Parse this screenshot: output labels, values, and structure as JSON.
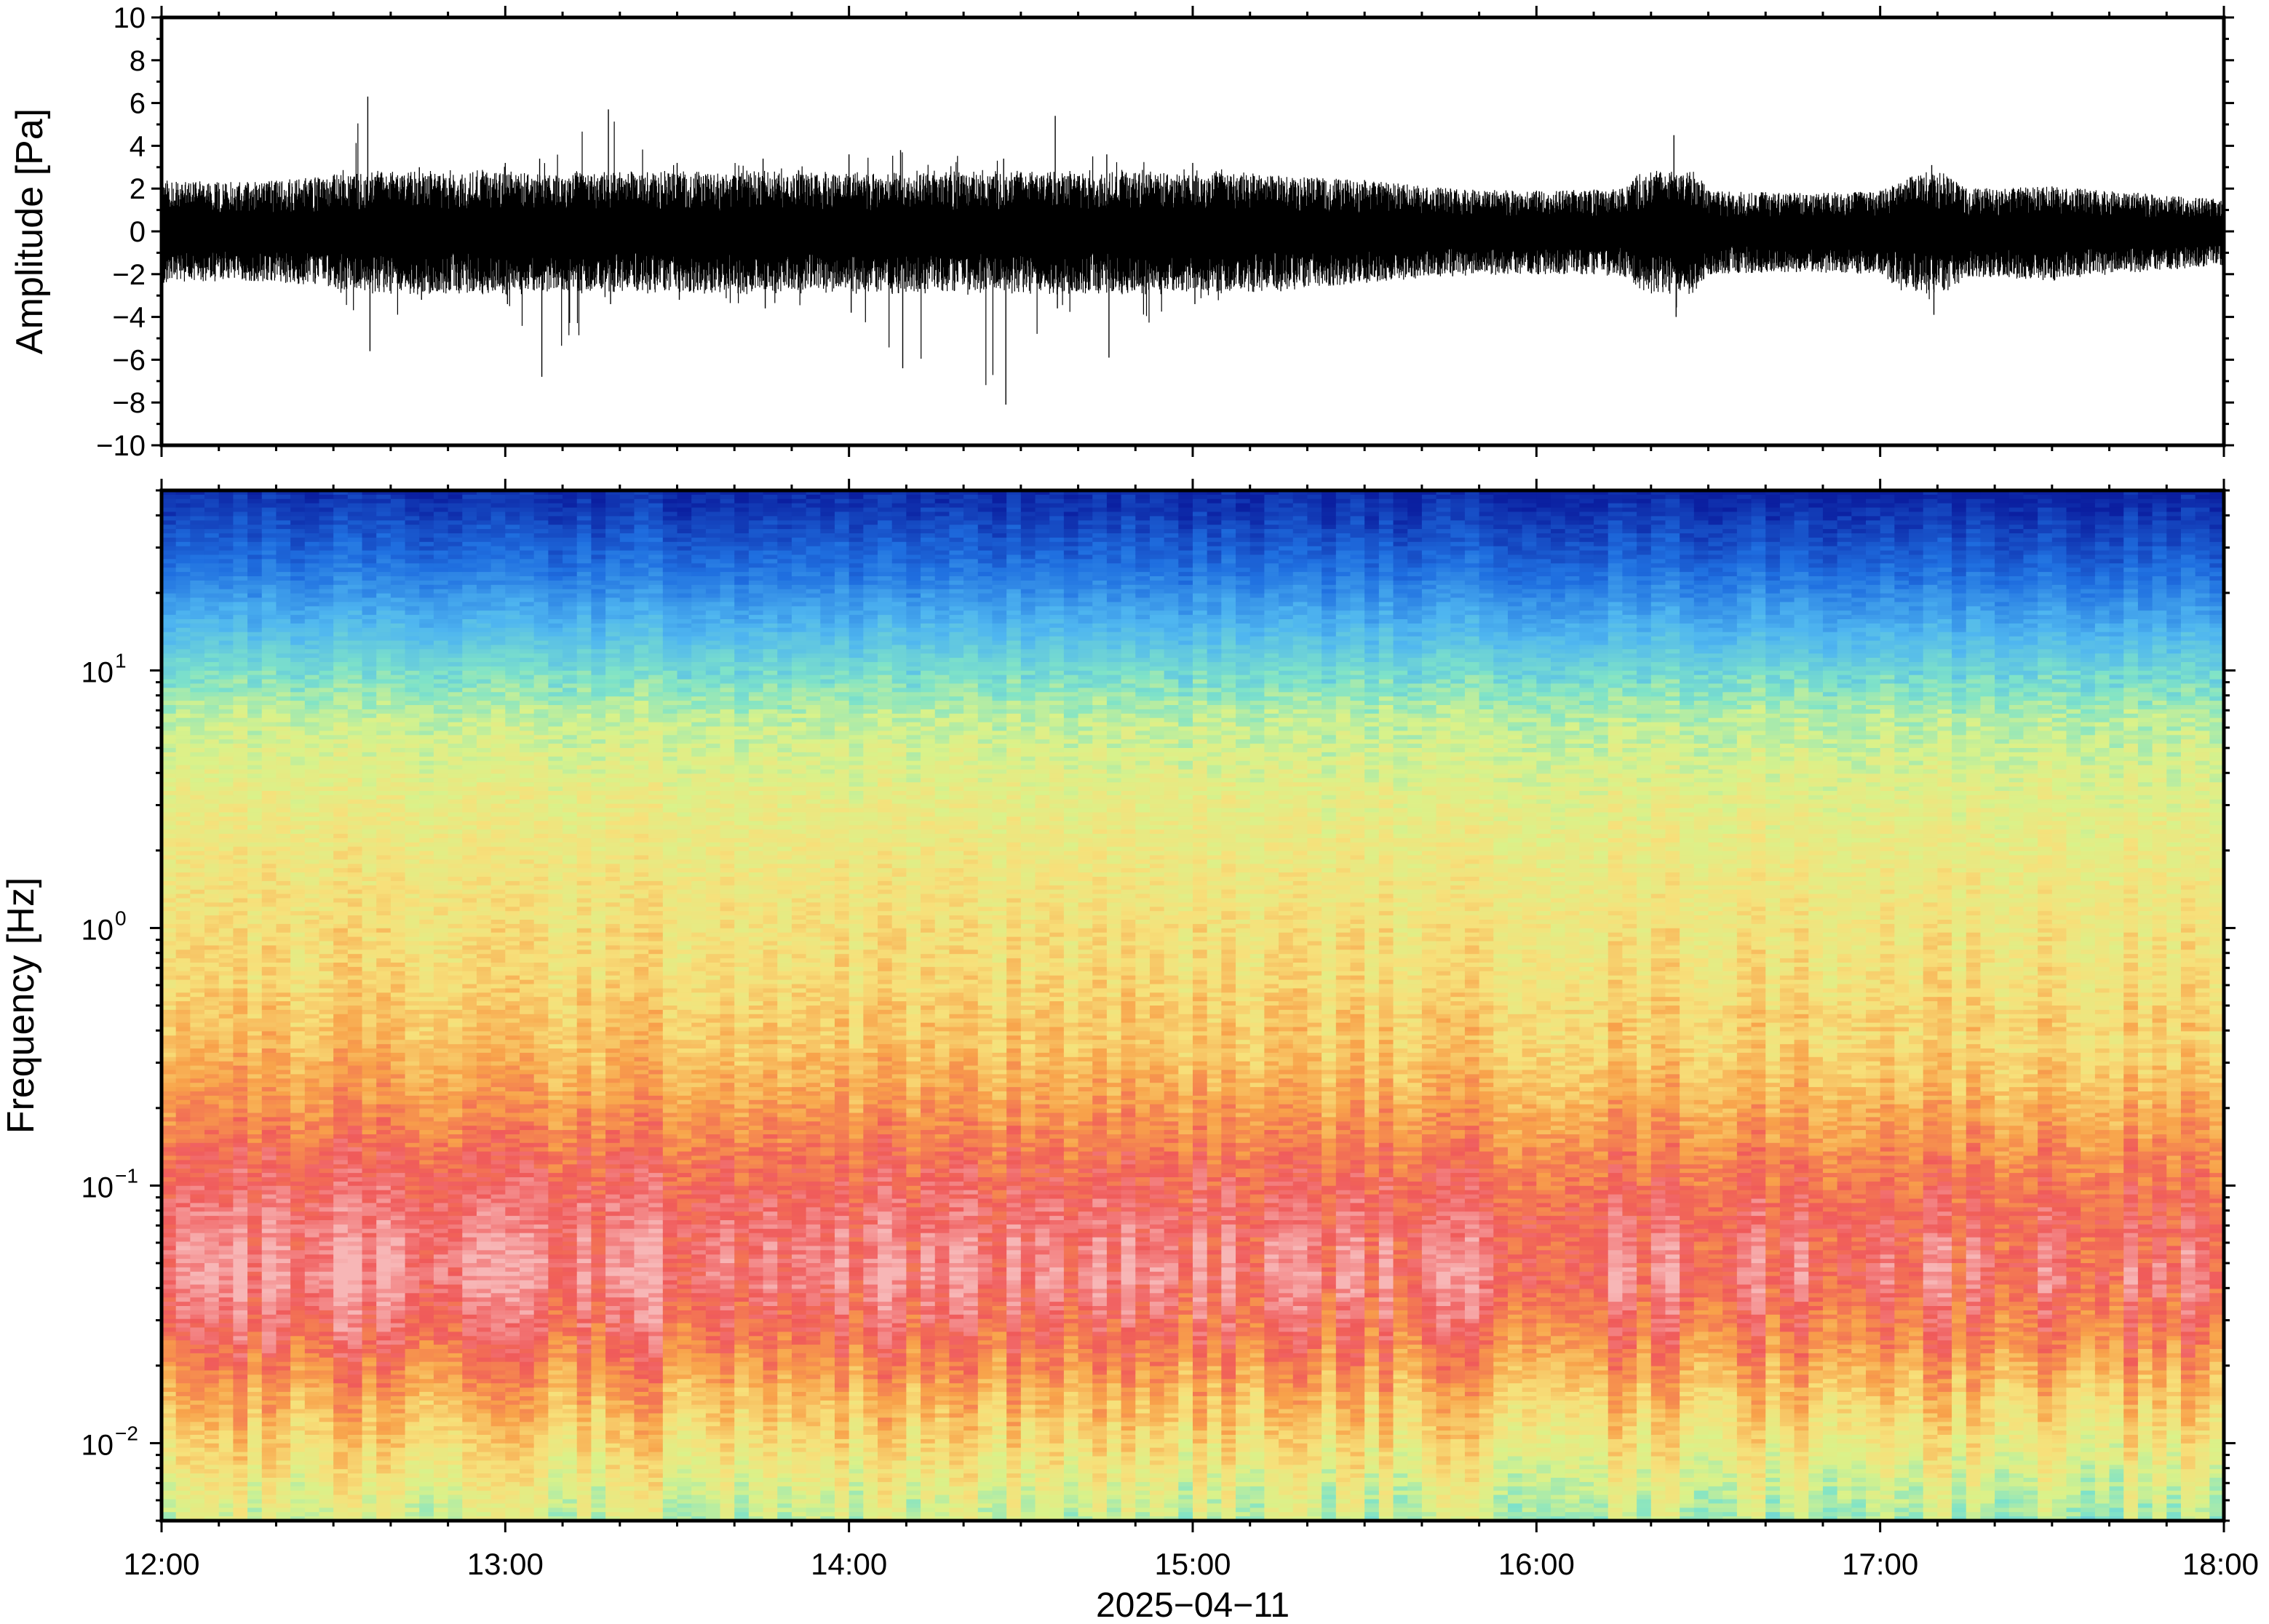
{
  "chart_data": [
    {
      "type": "line",
      "title": "",
      "xlabel": "",
      "ylabel": "Amplitude [Pa]",
      "ylim": [
        -10,
        10
      ],
      "y_ticks": [
        10,
        8,
        6,
        4,
        2,
        0,
        -2,
        -4,
        -6,
        -8,
        -10
      ],
      "y_tick_labels": [
        "10",
        "8",
        "6",
        "4",
        "2",
        "0",
        "−2",
        "−4",
        "−6",
        "−8",
        "−10"
      ],
      "xlim": [
        "12:00",
        "18:00"
      ],
      "series": [
        {
          "description_note": "",
          "line_color": "#000000",
          "envelope_hours": [
            12.0,
            12.25,
            12.5,
            12.6,
            12.75,
            13.0,
            13.1,
            13.3,
            13.5,
            13.75,
            14.0,
            14.15,
            14.45,
            14.6,
            14.75,
            15.0,
            15.25,
            15.5,
            15.75,
            16.0,
            16.25,
            16.4,
            16.5,
            16.75,
            17.0,
            17.15,
            17.25,
            17.5,
            17.75,
            18.0
          ],
          "envelope_pos": [
            2.4,
            2.3,
            2.6,
            6.3,
            3.0,
            3.2,
            3.4,
            5.7,
            3.2,
            3.4,
            3.6,
            3.8,
            3.4,
            5.4,
            3.6,
            3.2,
            2.6,
            2.4,
            2.0,
            1.9,
            2.0,
            4.5,
            1.9,
            1.8,
            1.9,
            3.1,
            2.0,
            2.1,
            1.8,
            1.5
          ],
          "envelope_neg": [
            -2.4,
            -2.3,
            -2.6,
            -5.6,
            -3.2,
            -3.4,
            -6.8,
            -3.4,
            -3.2,
            -3.6,
            -3.8,
            -6.4,
            -8.1,
            -3.6,
            -5.9,
            -3.4,
            -2.8,
            -2.4,
            -2.1,
            -2.0,
            -2.1,
            -4.0,
            -2.0,
            -1.9,
            -2.0,
            -3.9,
            -2.1,
            -2.3,
            -1.9,
            -1.6
          ]
        }
      ],
      "grid": false
    },
    {
      "type": "heatmap",
      "title": "",
      "xlabel": "2025−04−11",
      "ylabel": "Frequency [Hz]",
      "y_scale": "log",
      "ylim": [
        0.005,
        50
      ],
      "y_ticks": [
        0.01,
        0.1,
        1,
        10
      ],
      "y_tick_labels": [
        {
          "base": "10",
          "exp": "−2"
        },
        {
          "base": "10",
          "exp": "−1"
        },
        {
          "base": "10",
          "exp": "0"
        },
        {
          "base": "10",
          "exp": "1"
        }
      ],
      "x_ticks": [
        "12:00",
        "13:00",
        "14:00",
        "15:00",
        "16:00",
        "17:00",
        "18:00"
      ],
      "colormap": "rainbow (blue = low power, pink/red = high power)",
      "color_stops": [
        "#0b1fa0",
        "#1f6fe0",
        "#4fb6f0",
        "#7fe3c8",
        "#d9f28a",
        "#f7e07a",
        "#f8a24a",
        "#f05a5a",
        "#f7b6b6"
      ],
      "band_profile": {
        "log_freq": [
          1.7,
          1.4,
          1.1,
          0.8,
          0.5,
          0.2,
          -0.2,
          -0.45,
          -0.7,
          -0.9,
          -1.1,
          -1.35,
          -1.6,
          -1.85,
          -2.1,
          -2.3
        ],
        "level": [
          0.02,
          0.14,
          0.3,
          0.48,
          0.56,
          0.6,
          0.64,
          0.7,
          0.78,
          0.86,
          0.92,
          0.96,
          0.86,
          0.72,
          0.6,
          0.5
        ]
      },
      "grid": false
    }
  ]
}
